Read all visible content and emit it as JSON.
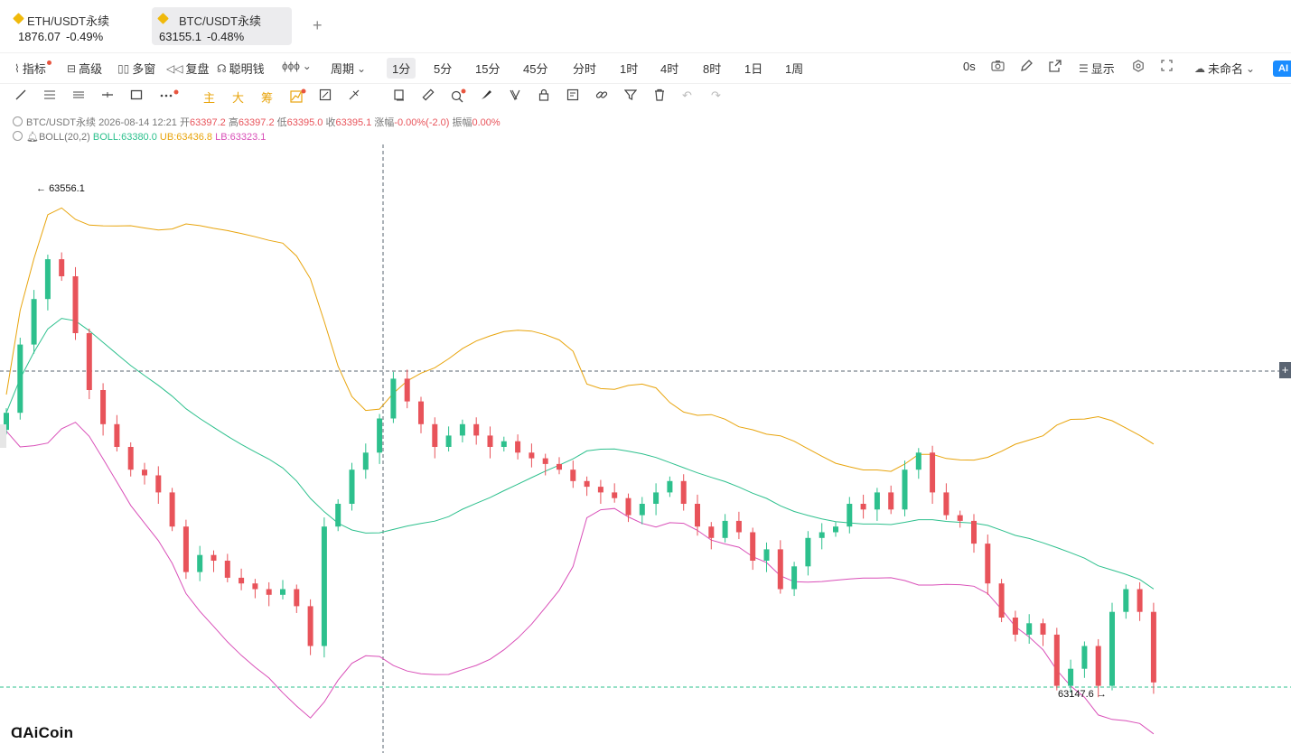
{
  "tabs": [
    {
      "name": "ETH/USDT永续",
      "price": "1876.07",
      "change": "-0.49%",
      "active": false
    },
    {
      "name": "BTC/USDT永续",
      "price": "63155.1",
      "change": "-0.48%",
      "active": true
    }
  ],
  "toolbar": {
    "indicators": "指标",
    "advanced": "高级",
    "multi_window": "多窗",
    "replay": "复盘",
    "smart_money": "聪明钱",
    "period_label": "周期",
    "periods": [
      "1分",
      "5分",
      "15分",
      "45分",
      "分时",
      "1时",
      "4时",
      "8时",
      "1日",
      "1周"
    ],
    "selected_period": "1分",
    "countdown": "0s",
    "display": "显示",
    "layout_name": "未命名",
    "ai": "AI"
  },
  "drawbar": {
    "main": "主",
    "big": "大",
    "chips": "筹"
  },
  "legend": {
    "symbol": "BTC/USDT永续",
    "datetime": "2026-08-14 12:21",
    "open_label": "开",
    "open": "63397.2",
    "high_label": "高",
    "high": "63397.2",
    "low_label": "低",
    "low": "63395.0",
    "close_label": "收",
    "close": "63395.1",
    "change_label": "涨幅",
    "change": "-0.00%(-2.0)",
    "amplitude_label": "振幅",
    "amplitude": "0.00%",
    "boll_name": "BOLL(20,2)",
    "boll": "BOLL:63380.0",
    "ub": "UB:63436.8",
    "lb": "LB:63323.1"
  },
  "chart_data": {
    "type": "candlestick",
    "symbol": "BTC/USDT永续",
    "high_marker": "63556.1",
    "low_marker": "63147.6",
    "close_series": [
      63400,
      63460,
      63500,
      63535,
      63520,
      63470,
      63420,
      63390,
      63370,
      63350,
      63345,
      63330,
      63300,
      63260,
      63275,
      63270,
      63255,
      63250,
      63245,
      63240,
      63245,
      63230,
      63195,
      63300,
      63320,
      63350,
      63365,
      63395,
      63430,
      63410,
      63390,
      63370,
      63380,
      63390,
      63380,
      63370,
      63375,
      63365,
      63360,
      63355,
      63350,
      63340,
      63335,
      63330,
      63325,
      63310,
      63320,
      63330,
      63340,
      63320,
      63300,
      63290,
      63305,
      63295,
      63270,
      63280,
      63245,
      63265,
      63290,
      63295,
      63300,
      63320,
      63315,
      63330,
      63315,
      63350,
      63365,
      63330,
      63310,
      63305,
      63285,
      63250,
      63220,
      63205,
      63215,
      63205,
      63160,
      63175,
      63195,
      63160,
      63225,
      63245,
      63225,
      63163
    ],
    "colors": {
      "up": "#2dc08d",
      "down": "#e8535a",
      "boll": "#2dc08d",
      "ub": "#e8a40c",
      "lb": "#d94fb8"
    }
  },
  "brand": "AiCoin"
}
